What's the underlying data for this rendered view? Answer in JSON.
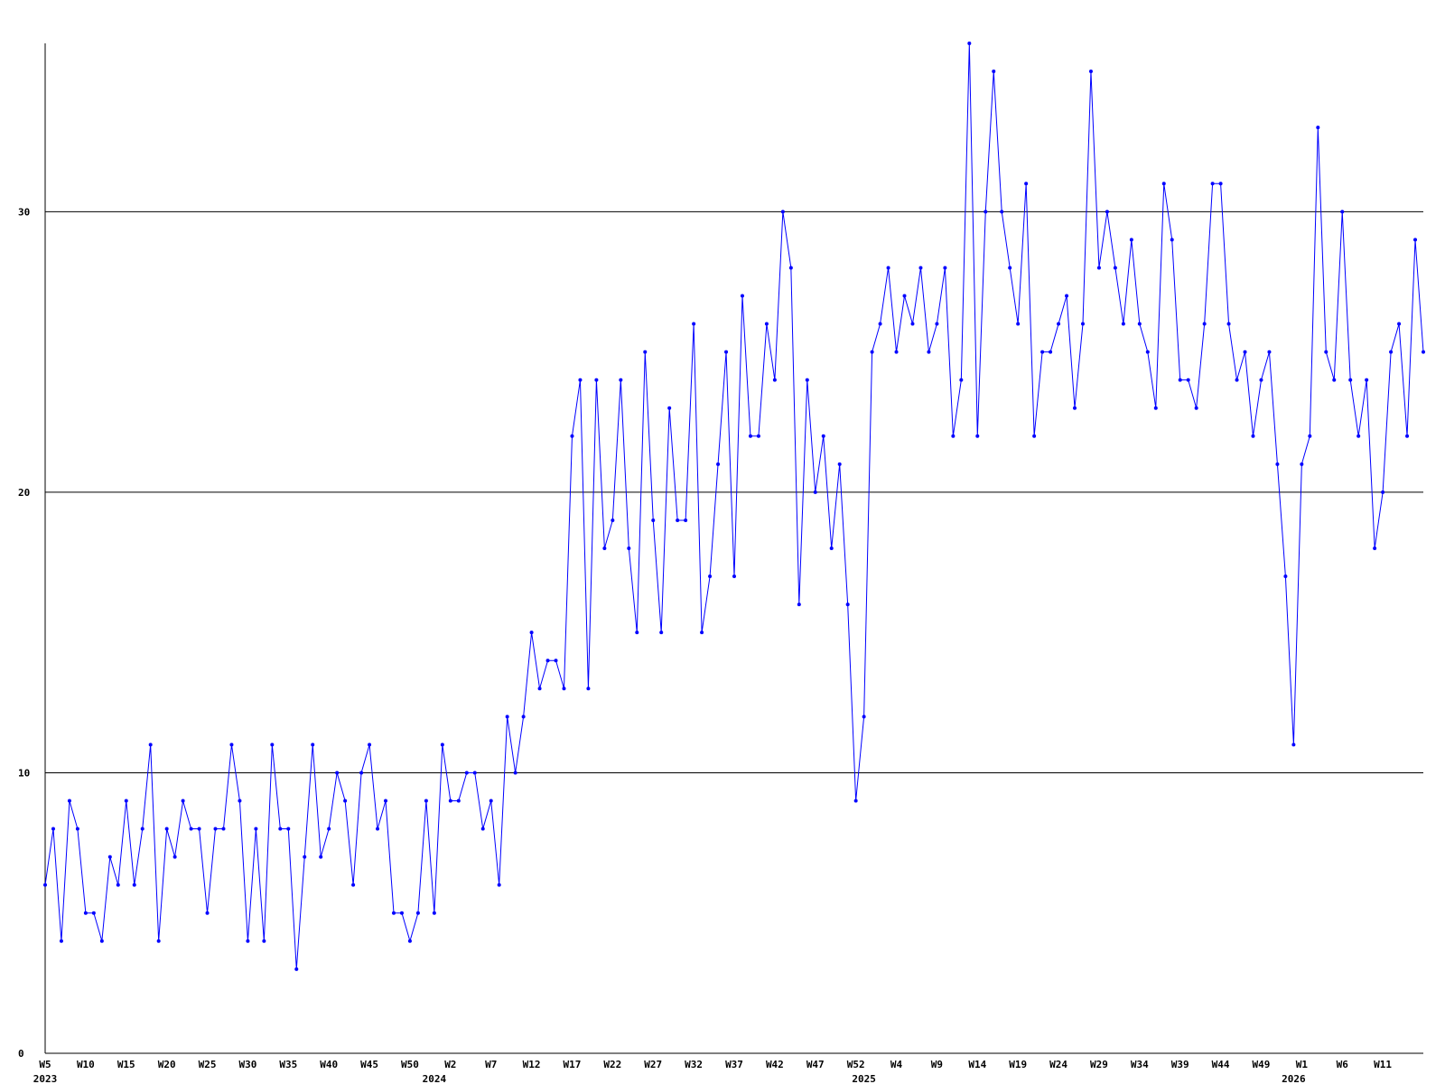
{
  "chart_data": {
    "type": "line",
    "title": "",
    "xlabel": "",
    "ylabel": "",
    "ylim": [
      0,
      36
    ],
    "grid": true,
    "y_ticks": [
      0,
      10,
      20,
      30
    ],
    "x_tick_labels": [
      "W5",
      "W10",
      "W15",
      "W20",
      "W25",
      "W30",
      "W35",
      "W40",
      "W45",
      "W50",
      "W2",
      "W7",
      "W12",
      "W17",
      "W22",
      "W27",
      "W32",
      "W37",
      "W42",
      "W47",
      "W52",
      "W4",
      "W9",
      "W14",
      "W19",
      "W24",
      "W29",
      "W34",
      "W39",
      "W44",
      "W49",
      "W1",
      "W6",
      "W11"
    ],
    "x_tick_index": [
      0,
      5,
      10,
      15,
      20,
      25,
      30,
      35,
      40,
      45,
      50,
      55,
      60,
      65,
      70,
      75,
      80,
      85,
      90,
      95,
      100,
      105,
      110,
      115,
      120,
      125,
      130,
      135,
      140,
      145,
      150,
      155,
      160,
      165
    ],
    "year_labels": [
      "2023",
      "2024",
      "2025",
      "2026"
    ],
    "year_label_index": [
      0,
      48,
      101,
      154
    ],
    "series": [
      {
        "color": "#0000ff",
        "values": [
          6,
          8,
          4,
          9,
          8,
          5,
          5,
          4,
          7,
          6,
          9,
          6,
          8,
          11,
          4,
          8,
          7,
          9,
          8,
          8,
          5,
          8,
          8,
          11,
          9,
          4,
          8,
          4,
          11,
          8,
          8,
          3,
          7,
          11,
          7,
          8,
          10,
          9,
          6,
          10,
          11,
          8,
          9,
          5,
          5,
          4,
          5,
          9,
          5,
          11,
          9,
          9,
          10,
          10,
          8,
          9,
          6,
          12,
          10,
          12,
          15,
          13,
          14,
          14,
          13,
          22,
          24,
          13,
          24,
          18,
          19,
          24,
          18,
          15,
          25,
          19,
          15,
          23,
          19,
          19,
          26,
          15,
          17,
          21,
          25,
          17,
          27,
          22,
          22,
          26,
          24,
          30,
          28,
          16,
          24,
          20,
          22,
          18,
          21,
          16,
          9,
          12,
          25,
          26,
          28,
          25,
          27,
          26,
          28,
          25,
          26,
          28,
          22,
          24,
          36,
          22,
          30,
          35,
          30,
          28,
          26,
          31,
          22,
          25,
          25,
          26,
          27,
          23,
          26,
          35,
          28,
          30,
          28,
          26,
          29,
          26,
          25,
          23,
          31,
          29,
          24,
          24,
          23,
          26,
          31,
          31,
          26,
          24,
          25,
          22,
          24,
          25,
          21,
          17,
          11,
          21,
          22,
          33,
          25,
          24,
          30,
          24,
          22,
          24,
          18,
          20,
          25,
          26,
          22,
          29,
          25
        ]
      }
    ]
  }
}
